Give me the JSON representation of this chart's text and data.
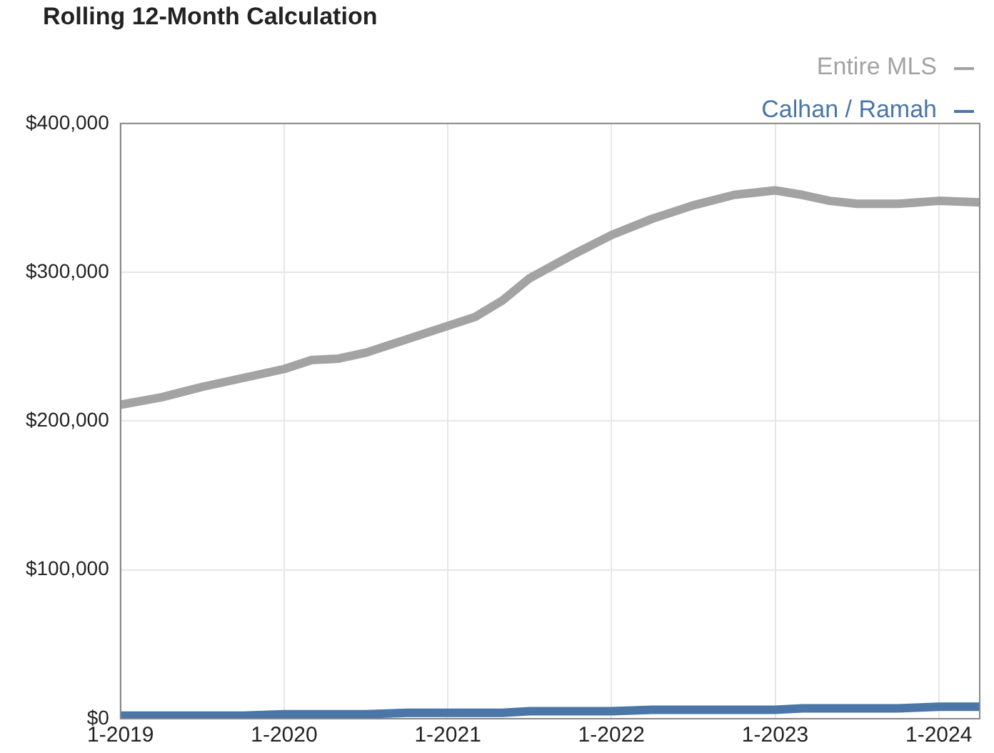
{
  "chart_data": {
    "type": "line",
    "title": "Rolling 12-Month Calculation",
    "x": [
      "2019-01",
      "2019-04",
      "2019-07",
      "2019-10",
      "2020-01",
      "2020-03",
      "2020-05",
      "2020-07",
      "2020-10",
      "2021-01",
      "2021-03",
      "2021-05",
      "2021-07",
      "2021-10",
      "2022-01",
      "2022-04",
      "2022-07",
      "2022-10",
      "2023-01",
      "2023-03",
      "2023-05",
      "2023-07",
      "2023-10",
      "2024-01",
      "2024-04"
    ],
    "series": [
      {
        "name": "Entire MLS",
        "color": "#a3a3a3",
        "values": [
          211000,
          216000,
          223000,
          229000,
          235000,
          241000,
          242000,
          246000,
          255000,
          264000,
          270000,
          281000,
          296000,
          311000,
          325000,
          336000,
          345000,
          352000,
          355000,
          352000,
          348000,
          346000,
          346000,
          348000,
          347000
        ]
      },
      {
        "name": "Calhan / Ramah",
        "color": "#4a76a8",
        "values": [
          2000,
          2000,
          2000,
          2000,
          3000,
          3000,
          3000,
          3000,
          4000,
          4000,
          4000,
          4000,
          5000,
          5000,
          5000,
          6000,
          6000,
          6000,
          6000,
          7000,
          7000,
          7000,
          7000,
          8000,
          8000
        ]
      }
    ],
    "xlim": [
      "2019-01",
      "2024-04"
    ],
    "xticks": [
      {
        "value": "2019-01",
        "label": "1-2019"
      },
      {
        "value": "2020-01",
        "label": "1-2020"
      },
      {
        "value": "2021-01",
        "label": "1-2021"
      },
      {
        "value": "2022-01",
        "label": "1-2022"
      },
      {
        "value": "2023-01",
        "label": "1-2023"
      },
      {
        "value": "2024-01",
        "label": "1-2024"
      }
    ],
    "ylim": [
      0,
      400000
    ],
    "yticks": [
      {
        "value": 0,
        "label": "$0"
      },
      {
        "value": 100000,
        "label": "$100,000"
      },
      {
        "value": 200000,
        "label": "$200,000"
      },
      {
        "value": 300000,
        "label": "$300,000"
      },
      {
        "value": 400000,
        "label": "$400,000"
      }
    ],
    "grid": true,
    "legend": "top right",
    "marker": "none",
    "line_style": "solid"
  }
}
